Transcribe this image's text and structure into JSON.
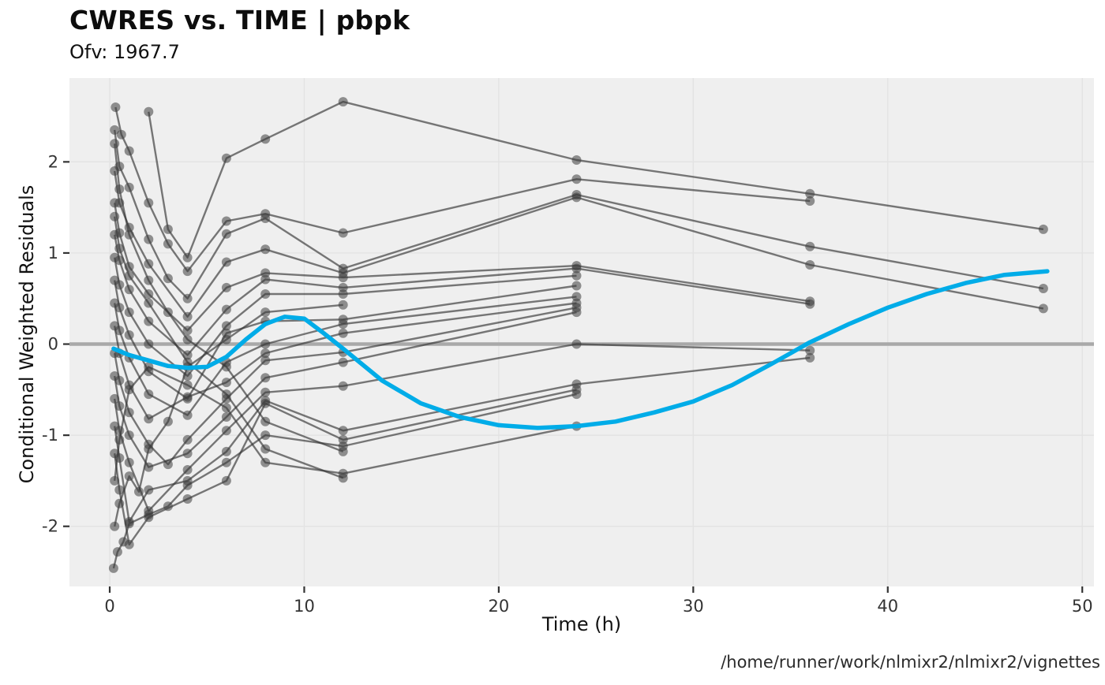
{
  "header": {
    "title": "CWRES vs. TIME | pbpk",
    "subtitle": "Ofv: 1967.7"
  },
  "caption": "/home/runner/work/nlmixr2/nlmixr2/vignettes",
  "chart_data": {
    "type": "scatter",
    "title": "CWRES vs. TIME | pbpk",
    "subtitle": "Ofv: 1967.7",
    "xlabel": "Time (h)",
    "ylabel": "Conditional Weighted Residuals",
    "x_ticks": [
      0,
      10,
      20,
      30,
      40,
      50
    ],
    "y_ticks": [
      -2,
      -1,
      0,
      1,
      2
    ],
    "x_range": [
      -2.07,
      50.6
    ],
    "y_range": [
      -2.66,
      2.92
    ],
    "grid": "major",
    "legend": "none",
    "reference_line_y": 0,
    "colors": {
      "panel_background": "#efefef",
      "grid_line": "#e3e3e3",
      "reference_line": "#a9a9a9",
      "point": "#3d3d3d",
      "subject_line": "#333333",
      "smooth_line": "#00ace8"
    },
    "subjects": [
      {
        "points": [
          [
            2,
            2.55
          ],
          [
            3,
            1.26
          ],
          [
            4,
            0.95
          ],
          [
            6,
            2.04
          ],
          [
            8,
            2.25
          ],
          [
            12,
            2.66
          ],
          [
            24,
            2.02
          ],
          [
            36,
            1.65
          ],
          [
            48,
            1.26
          ]
        ]
      },
      {
        "points": [
          [
            0.3,
            2.6
          ],
          [
            0.6,
            2.3
          ],
          [
            1,
            2.12
          ],
          [
            2,
            1.55
          ],
          [
            3,
            1.1
          ],
          [
            4,
            0.8
          ],
          [
            6,
            1.35
          ],
          [
            8,
            1.43
          ],
          [
            12,
            1.22
          ],
          [
            24,
            1.81
          ],
          [
            36,
            1.57
          ]
        ]
      },
      {
        "points": [
          [
            0.25,
            2.35
          ],
          [
            0.5,
            1.95
          ],
          [
            1,
            1.72
          ],
          [
            2,
            1.15
          ],
          [
            3,
            0.72
          ],
          [
            4,
            0.5
          ],
          [
            6,
            1.21
          ],
          [
            8,
            1.38
          ],
          [
            12,
            0.83
          ],
          [
            24,
            1.64
          ],
          [
            36,
            1.07
          ],
          [
            48,
            0.61
          ]
        ]
      },
      {
        "points": [
          [
            0.25,
            1.9
          ],
          [
            0.5,
            1.55
          ],
          [
            1,
            1.28
          ],
          [
            2,
            0.88
          ],
          [
            4,
            0.3
          ],
          [
            6,
            0.9
          ],
          [
            8,
            1.04
          ],
          [
            12,
            0.78
          ],
          [
            24,
            1.61
          ],
          [
            36,
            0.87
          ],
          [
            48,
            0.39
          ]
        ]
      },
      {
        "points": [
          [
            0.25,
            1.55
          ],
          [
            0.5,
            1.22
          ],
          [
            1,
            0.85
          ],
          [
            2,
            0.55
          ],
          [
            4,
            0.15
          ],
          [
            6,
            0.62
          ],
          [
            8,
            0.78
          ],
          [
            12,
            0.73
          ],
          [
            24,
            0.86
          ],
          [
            36,
            0.47
          ]
        ]
      },
      {
        "points": [
          [
            0.25,
            1.2
          ],
          [
            0.5,
            0.92
          ],
          [
            1,
            0.6
          ],
          [
            2,
            0.25
          ],
          [
            4,
            -0.12
          ],
          [
            6,
            0.38
          ],
          [
            8,
            0.71
          ],
          [
            12,
            0.62
          ],
          [
            24,
            0.83
          ],
          [
            36,
            0.44
          ]
        ]
      },
      {
        "points": [
          [
            0.25,
            0.95
          ],
          [
            0.5,
            0.65
          ],
          [
            1,
            0.35
          ],
          [
            2,
            0.0
          ],
          [
            4,
            -0.35
          ],
          [
            6,
            0.2
          ],
          [
            8,
            0.55
          ],
          [
            12,
            0.55
          ],
          [
            24,
            0.75
          ]
        ]
      },
      {
        "points": [
          [
            0.25,
            0.7
          ],
          [
            0.5,
            0.4
          ],
          [
            1,
            0.1
          ],
          [
            2,
            -0.3
          ],
          [
            4,
            -0.6
          ],
          [
            6,
            0.12
          ],
          [
            8,
            0.25
          ],
          [
            12,
            0.27
          ],
          [
            24,
            0.64
          ]
        ]
      },
      {
        "points": [
          [
            0.25,
            0.45
          ],
          [
            0.5,
            0.15
          ],
          [
            1,
            -0.15
          ],
          [
            2,
            -0.55
          ],
          [
            4,
            -0.78
          ],
          [
            6,
            -0.2
          ],
          [
            8,
            0.0
          ],
          [
            12,
            0.22
          ],
          [
            24,
            0.52
          ]
        ]
      },
      {
        "points": [
          [
            0.25,
            0.2
          ],
          [
            0.5,
            -0.1
          ],
          [
            1,
            -0.45
          ],
          [
            2,
            -0.82
          ],
          [
            4,
            -0.58
          ],
          [
            6,
            -0.42
          ],
          [
            8,
            -0.1
          ],
          [
            12,
            0.12
          ],
          [
            24,
            0.45
          ]
        ]
      },
      {
        "points": [
          [
            0.25,
            -0.1
          ],
          [
            0.5,
            -0.4
          ],
          [
            1,
            -0.75
          ],
          [
            2,
            -1.1
          ],
          [
            3,
            -1.32
          ],
          [
            4,
            -1.05
          ],
          [
            6,
            -0.6
          ],
          [
            8,
            -0.18
          ],
          [
            12,
            -0.09
          ],
          [
            24,
            0.4
          ]
        ]
      },
      {
        "points": [
          [
            0.25,
            -0.35
          ],
          [
            0.5,
            -0.68
          ],
          [
            1,
            -1.0
          ],
          [
            2,
            -1.35
          ],
          [
            4,
            -1.2
          ],
          [
            6,
            -0.8
          ],
          [
            8,
            -0.37
          ],
          [
            12,
            -0.2
          ],
          [
            24,
            0.35
          ]
        ]
      },
      {
        "points": [
          [
            0.25,
            -0.6
          ],
          [
            0.5,
            -0.95
          ],
          [
            1,
            -1.3
          ],
          [
            2,
            -1.83
          ],
          [
            4,
            -1.38
          ],
          [
            6,
            -0.95
          ],
          [
            8,
            -0.53
          ],
          [
            12,
            -0.46
          ],
          [
            24,
            0.0
          ],
          [
            36,
            -0.07
          ]
        ]
      },
      {
        "points": [
          [
            0.25,
            -0.9
          ],
          [
            0.5,
            -1.25
          ],
          [
            1,
            -1.95
          ],
          [
            2,
            -1.6
          ],
          [
            4,
            -1.5
          ],
          [
            6,
            -1.18
          ],
          [
            8,
            -0.62
          ],
          [
            12,
            -0.95
          ],
          [
            24,
            -0.44
          ],
          [
            36,
            -0.15
          ]
        ]
      },
      {
        "points": [
          [
            0.25,
            -1.2
          ],
          [
            0.5,
            -1.6
          ],
          [
            1,
            -2.2
          ],
          [
            2,
            -1.9
          ],
          [
            4,
            -1.7
          ],
          [
            6,
            -1.5
          ],
          [
            8,
            -0.65
          ],
          [
            12,
            -1.05
          ],
          [
            24,
            -0.5
          ]
        ]
      },
      {
        "points": [
          [
            0.2,
            -2.46
          ],
          [
            0.4,
            -2.28
          ],
          [
            0.7,
            -2.17
          ],
          [
            1,
            -1.97
          ],
          [
            2,
            -1.87
          ],
          [
            3,
            -1.78
          ],
          [
            4,
            -1.55
          ],
          [
            6,
            -1.3
          ],
          [
            8,
            -1.0
          ],
          [
            12,
            -1.12
          ],
          [
            24,
            -0.55
          ]
        ]
      },
      {
        "points": [
          [
            0.25,
            -1.5
          ],
          [
            0.5,
            -1.05
          ],
          [
            1,
            -0.5
          ],
          [
            2,
            -0.25
          ],
          [
            4,
            -0.45
          ],
          [
            6,
            -0.7
          ],
          [
            8,
            -1.3
          ],
          [
            12,
            -1.42
          ],
          [
            24,
            -0.9
          ]
        ]
      },
      {
        "points": [
          [
            0.25,
            2.2
          ],
          [
            0.5,
            1.7
          ],
          [
            1,
            1.2
          ],
          [
            2,
            0.7
          ],
          [
            3,
            0.35
          ],
          [
            4,
            0.05
          ],
          [
            6,
            -0.25
          ],
          [
            8,
            -0.85
          ],
          [
            12,
            -1.18
          ]
        ]
      },
      {
        "points": [
          [
            0.25,
            1.4
          ],
          [
            0.5,
            1.05
          ],
          [
            1,
            0.75
          ],
          [
            2,
            0.45
          ],
          [
            4,
            -0.2
          ],
          [
            6,
            -0.55
          ],
          [
            8,
            -1.15
          ],
          [
            12,
            -1.47
          ]
        ]
      },
      {
        "points": [
          [
            0.25,
            -2.0
          ],
          [
            0.5,
            -1.75
          ],
          [
            1,
            -1.45
          ],
          [
            1.5,
            -1.62
          ],
          [
            2,
            -1.15
          ],
          [
            3,
            -0.85
          ],
          [
            4,
            -0.25
          ],
          [
            6,
            0.05
          ],
          [
            8,
            0.35
          ],
          [
            12,
            0.43
          ]
        ]
      }
    ],
    "smooth": {
      "name": "loess-smooth",
      "points": [
        [
          0.2,
          -0.05
        ],
        [
          1,
          -0.12
        ],
        [
          2,
          -0.18
        ],
        [
          3,
          -0.24
        ],
        [
          4,
          -0.26
        ],
        [
          5,
          -0.25
        ],
        [
          6,
          -0.14
        ],
        [
          7,
          0.05
        ],
        [
          8,
          0.22
        ],
        [
          9,
          0.3
        ],
        [
          10,
          0.28
        ],
        [
          11,
          0.12
        ],
        [
          12,
          -0.05
        ],
        [
          14,
          -0.4
        ],
        [
          16,
          -0.65
        ],
        [
          18,
          -0.8
        ],
        [
          20,
          -0.89
        ],
        [
          22,
          -0.92
        ],
        [
          24,
          -0.9
        ],
        [
          26,
          -0.85
        ],
        [
          28,
          -0.75
        ],
        [
          30,
          -0.63
        ],
        [
          32,
          -0.45
        ],
        [
          34,
          -0.22
        ],
        [
          35,
          -0.1
        ],
        [
          36,
          0.02
        ],
        [
          38,
          0.22
        ],
        [
          40,
          0.4
        ],
        [
          42,
          0.55
        ],
        [
          44,
          0.67
        ],
        [
          46,
          0.76
        ],
        [
          48.2,
          0.8
        ]
      ]
    }
  }
}
